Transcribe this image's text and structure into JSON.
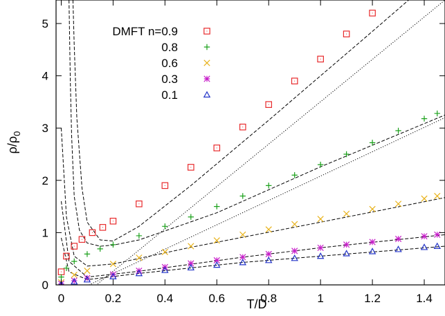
{
  "chart_data": {
    "type": "scatter",
    "xlabel": "T/D",
    "ylabel": "ρ/ρ",
    "ylabel_subscript": "0",
    "xlim": [
      -0.02,
      1.48
    ],
    "ylim": [
      0,
      5.45
    ],
    "x_ticks": [
      {
        "value": 0,
        "label": "0"
      },
      {
        "value": 0.2,
        "label": "0.2"
      },
      {
        "value": 0.4,
        "label": "0.4"
      },
      {
        "value": 0.6,
        "label": "0.6"
      },
      {
        "value": 0.8,
        "label": "0.8"
      },
      {
        "value": 1.0,
        "label": "1"
      },
      {
        "value": 1.2,
        "label": "1.2"
      },
      {
        "value": 1.4,
        "label": "1.4"
      }
    ],
    "y_ticks": [
      {
        "value": 0,
        "label": "0"
      },
      {
        "value": 1,
        "label": "1"
      },
      {
        "value": 2,
        "label": "2"
      },
      {
        "value": 3,
        "label": "3"
      },
      {
        "value": 4,
        "label": "4"
      },
      {
        "value": 5,
        "label": "5"
      }
    ],
    "grid": false,
    "legend_position": "top-left",
    "series": [
      {
        "name": "DMFT n=0.9",
        "marker": "square",
        "color": "#e8292b",
        "x": [
          0.0,
          0.02,
          0.05,
          0.08,
          0.12,
          0.16,
          0.2,
          0.3,
          0.4,
          0.5,
          0.6,
          0.7,
          0.8,
          0.9,
          1.0,
          1.1,
          1.2
        ],
        "y": [
          0.25,
          0.55,
          0.74,
          0.87,
          1.0,
          1.1,
          1.22,
          1.55,
          1.9,
          2.25,
          2.62,
          3.02,
          3.45,
          3.9,
          4.32,
          4.8,
          5.2
        ]
      },
      {
        "name": "0.8",
        "marker": "plus",
        "color": "#1aa01a",
        "x": [
          0.0,
          0.02,
          0.05,
          0.1,
          0.15,
          0.2,
          0.3,
          0.4,
          0.5,
          0.6,
          0.7,
          0.8,
          0.9,
          1.0,
          1.1,
          1.2,
          1.3,
          1.4,
          1.45
        ],
        "y": [
          0.15,
          0.32,
          0.45,
          0.59,
          0.69,
          0.77,
          0.94,
          1.12,
          1.3,
          1.5,
          1.7,
          1.9,
          2.1,
          2.3,
          2.5,
          2.72,
          2.95,
          3.18,
          3.28
        ]
      },
      {
        "name": "0.6",
        "marker": "cross",
        "color": "#e8b21a",
        "x": [
          0.0,
          0.05,
          0.1,
          0.2,
          0.3,
          0.4,
          0.5,
          0.6,
          0.7,
          0.8,
          0.9,
          1.0,
          1.1,
          1.2,
          1.3,
          1.4,
          1.45
        ],
        "y": [
          0.05,
          0.19,
          0.27,
          0.4,
          0.52,
          0.63,
          0.74,
          0.85,
          0.96,
          1.06,
          1.16,
          1.26,
          1.36,
          1.45,
          1.55,
          1.65,
          1.7
        ]
      },
      {
        "name": "0.3",
        "marker": "star",
        "color": "#c71ec9",
        "x": [
          0.0,
          0.05,
          0.1,
          0.2,
          0.3,
          0.4,
          0.5,
          0.6,
          0.7,
          0.8,
          0.9,
          1.0,
          1.1,
          1.2,
          1.3,
          1.4,
          1.45
        ],
        "y": [
          0.02,
          0.08,
          0.13,
          0.2,
          0.27,
          0.34,
          0.41,
          0.47,
          0.53,
          0.59,
          0.65,
          0.71,
          0.77,
          0.82,
          0.88,
          0.93,
          0.96
        ]
      },
      {
        "name": "0.1",
        "marker": "triangle",
        "color": "#2233c8",
        "x": [
          0.0,
          0.05,
          0.1,
          0.2,
          0.3,
          0.4,
          0.5,
          0.6,
          0.7,
          0.8,
          0.9,
          1.0,
          1.1,
          1.2,
          1.3,
          1.4,
          1.45
        ],
        "y": [
          0.01,
          0.06,
          0.1,
          0.16,
          0.22,
          0.28,
          0.33,
          0.38,
          0.43,
          0.47,
          0.51,
          0.55,
          0.6,
          0.64,
          0.68,
          0.72,
          0.74
        ]
      }
    ],
    "fit_lines": [
      {
        "style": "dashed",
        "x": [
          0.045,
          0.05,
          0.06,
          0.08,
          0.1,
          0.15,
          0.2,
          0.3,
          0.5,
          0.8,
          1.0,
          1.2,
          1.48
        ],
        "y": [
          5.45,
          4.6,
          3.2,
          1.85,
          1.2,
          0.86,
          0.84,
          1.12,
          1.9,
          3.15,
          4.0,
          4.85,
          6.05
        ]
      },
      {
        "style": "dotted",
        "x": [
          0.0,
          1.48
        ],
        "y": [
          -0.55,
          5.45
        ]
      },
      {
        "style": "dashed",
        "x": [
          0.03,
          0.035,
          0.04,
          0.05,
          0.07,
          0.1,
          0.15,
          0.2,
          0.3,
          0.6,
          1.0,
          1.48
        ],
        "y": [
          5.45,
          3.9,
          2.85,
          1.7,
          1.05,
          0.8,
          0.74,
          0.76,
          0.86,
          1.38,
          2.26,
          3.25
        ]
      },
      {
        "style": "dotted",
        "x": [
          0.0,
          1.48
        ],
        "y": [
          -0.25,
          3.2
        ]
      },
      {
        "style": "dashed",
        "x": [
          0.0,
          0.02,
          0.05,
          0.1,
          0.2,
          0.5,
          1.0,
          1.48
        ],
        "y": [
          3.0,
          1.3,
          0.55,
          0.36,
          0.4,
          0.72,
          1.2,
          1.67
        ]
      },
      {
        "style": "dashed",
        "x": [
          0.0,
          0.03,
          0.1,
          0.3,
          0.7,
          1.0,
          1.48
        ],
        "y": [
          1.6,
          0.45,
          0.15,
          0.26,
          0.53,
          0.71,
          0.96
        ]
      },
      {
        "style": "dashed",
        "x": [
          0.0,
          0.03,
          0.1,
          0.3,
          0.7,
          1.0,
          1.48
        ],
        "y": [
          0.9,
          0.25,
          0.1,
          0.22,
          0.43,
          0.55,
          0.74
        ]
      }
    ]
  }
}
